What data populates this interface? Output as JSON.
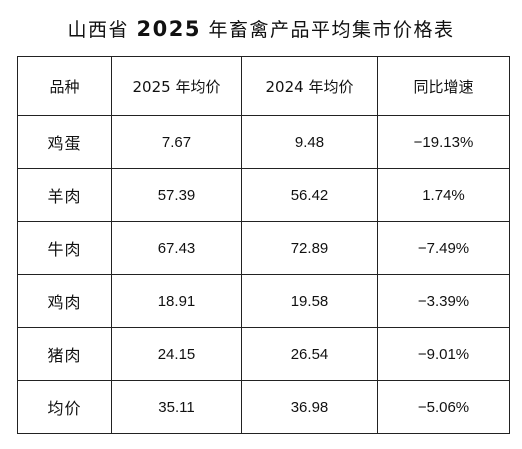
{
  "title": {
    "prefix": "山西省",
    "year": "2025",
    "suffix": "年畜禽产品平均集市价格表"
  },
  "table": {
    "headers": [
      "品种",
      "2025 年均价",
      "2024 年均价",
      "同比增速"
    ],
    "rows": [
      {
        "product": "鸡蛋",
        "price_2025": "7.67",
        "price_2024": "9.48",
        "yoy": "−19.13%"
      },
      {
        "product": "羊肉",
        "price_2025": "57.39",
        "price_2024": "56.42",
        "yoy": "1.74%"
      },
      {
        "product": "牛肉",
        "price_2025": "67.43",
        "price_2024": "72.89",
        "yoy": "−7.49%"
      },
      {
        "product": "鸡肉",
        "price_2025": "18.91",
        "price_2024": "19.58",
        "yoy": "−3.39%"
      },
      {
        "product": "猪肉",
        "price_2025": "24.15",
        "price_2024": "26.54",
        "yoy": "−9.01%"
      },
      {
        "product": "均价",
        "price_2025": "35.11",
        "price_2024": "36.98",
        "yoy": "−5.06%"
      }
    ]
  }
}
